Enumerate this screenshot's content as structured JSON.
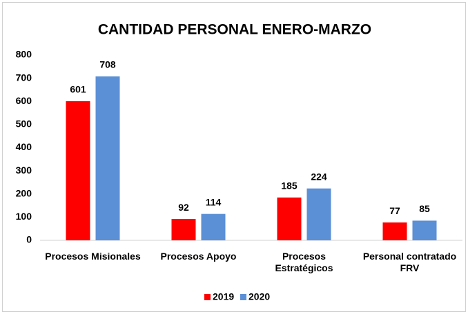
{
  "chart_data": {
    "type": "bar",
    "title": "CANTIDAD PERSONAL ENERO-MARZO",
    "categories": [
      "Procesos Misionales",
      "Procesos Apoyo",
      "Procesos Estratégicos",
      "Personal contratado FRV"
    ],
    "series": [
      {
        "name": "2019",
        "color": "#ff0000",
        "values": [
          601,
          92,
          185,
          77
        ]
      },
      {
        "name": "2020",
        "color": "#5b8fd6",
        "values": [
          708,
          114,
          224,
          85
        ]
      }
    ],
    "ylim": [
      0,
      800
    ],
    "yticks": [
      0,
      100,
      200,
      300,
      400,
      500,
      600,
      700,
      800
    ],
    "grid": false,
    "legend": "bottom"
  }
}
